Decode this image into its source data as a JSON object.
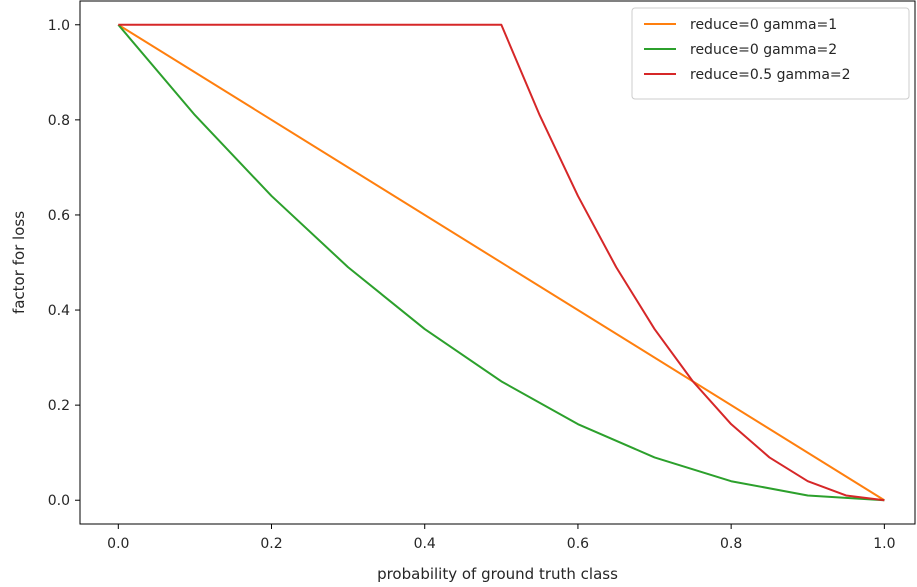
{
  "chart_data": {
    "type": "line",
    "title": "",
    "xlabel": "probability of ground truth class",
    "ylabel": "factor for loss",
    "xlim": [
      -0.05,
      1.04
    ],
    "ylim": [
      -0.05,
      1.05
    ],
    "xticks": [
      0.0,
      0.2,
      0.4,
      0.6,
      0.8,
      1.0
    ],
    "yticks": [
      0.0,
      0.2,
      0.4,
      0.6,
      0.8,
      1.0
    ],
    "xtick_labels": [
      "0.0",
      "0.2",
      "0.4",
      "0.6",
      "0.8",
      "1.0"
    ],
    "ytick_labels": [
      "0.0",
      "0.2",
      "0.4",
      "0.6",
      "0.8",
      "1.0"
    ],
    "grid": false,
    "legend_position": "top-right",
    "series": [
      {
        "name": "reduce=0 gamma=1",
        "color": "#ff7f0e",
        "x": [
          0.0,
          1.0
        ],
        "y": [
          1.0,
          0.0
        ]
      },
      {
        "name": "reduce=0 gamma=2",
        "color": "#2ca02c",
        "x": [
          0.0,
          0.1,
          0.2,
          0.3,
          0.4,
          0.5,
          0.6,
          0.7,
          0.8,
          0.9,
          1.0
        ],
        "y": [
          1.0,
          0.81,
          0.64,
          0.49,
          0.36,
          0.25,
          0.16,
          0.09,
          0.04,
          0.01,
          0.0
        ]
      },
      {
        "name": "reduce=0.5 gamma=2",
        "color": "#d62728",
        "x": [
          0.0,
          0.5,
          0.55,
          0.6,
          0.65,
          0.7,
          0.75,
          0.8,
          0.85,
          0.9,
          0.95,
          1.0
        ],
        "y": [
          1.0,
          1.0,
          0.81,
          0.64,
          0.49,
          0.36,
          0.25,
          0.16,
          0.09,
          0.04,
          0.01,
          0.0
        ]
      }
    ]
  }
}
